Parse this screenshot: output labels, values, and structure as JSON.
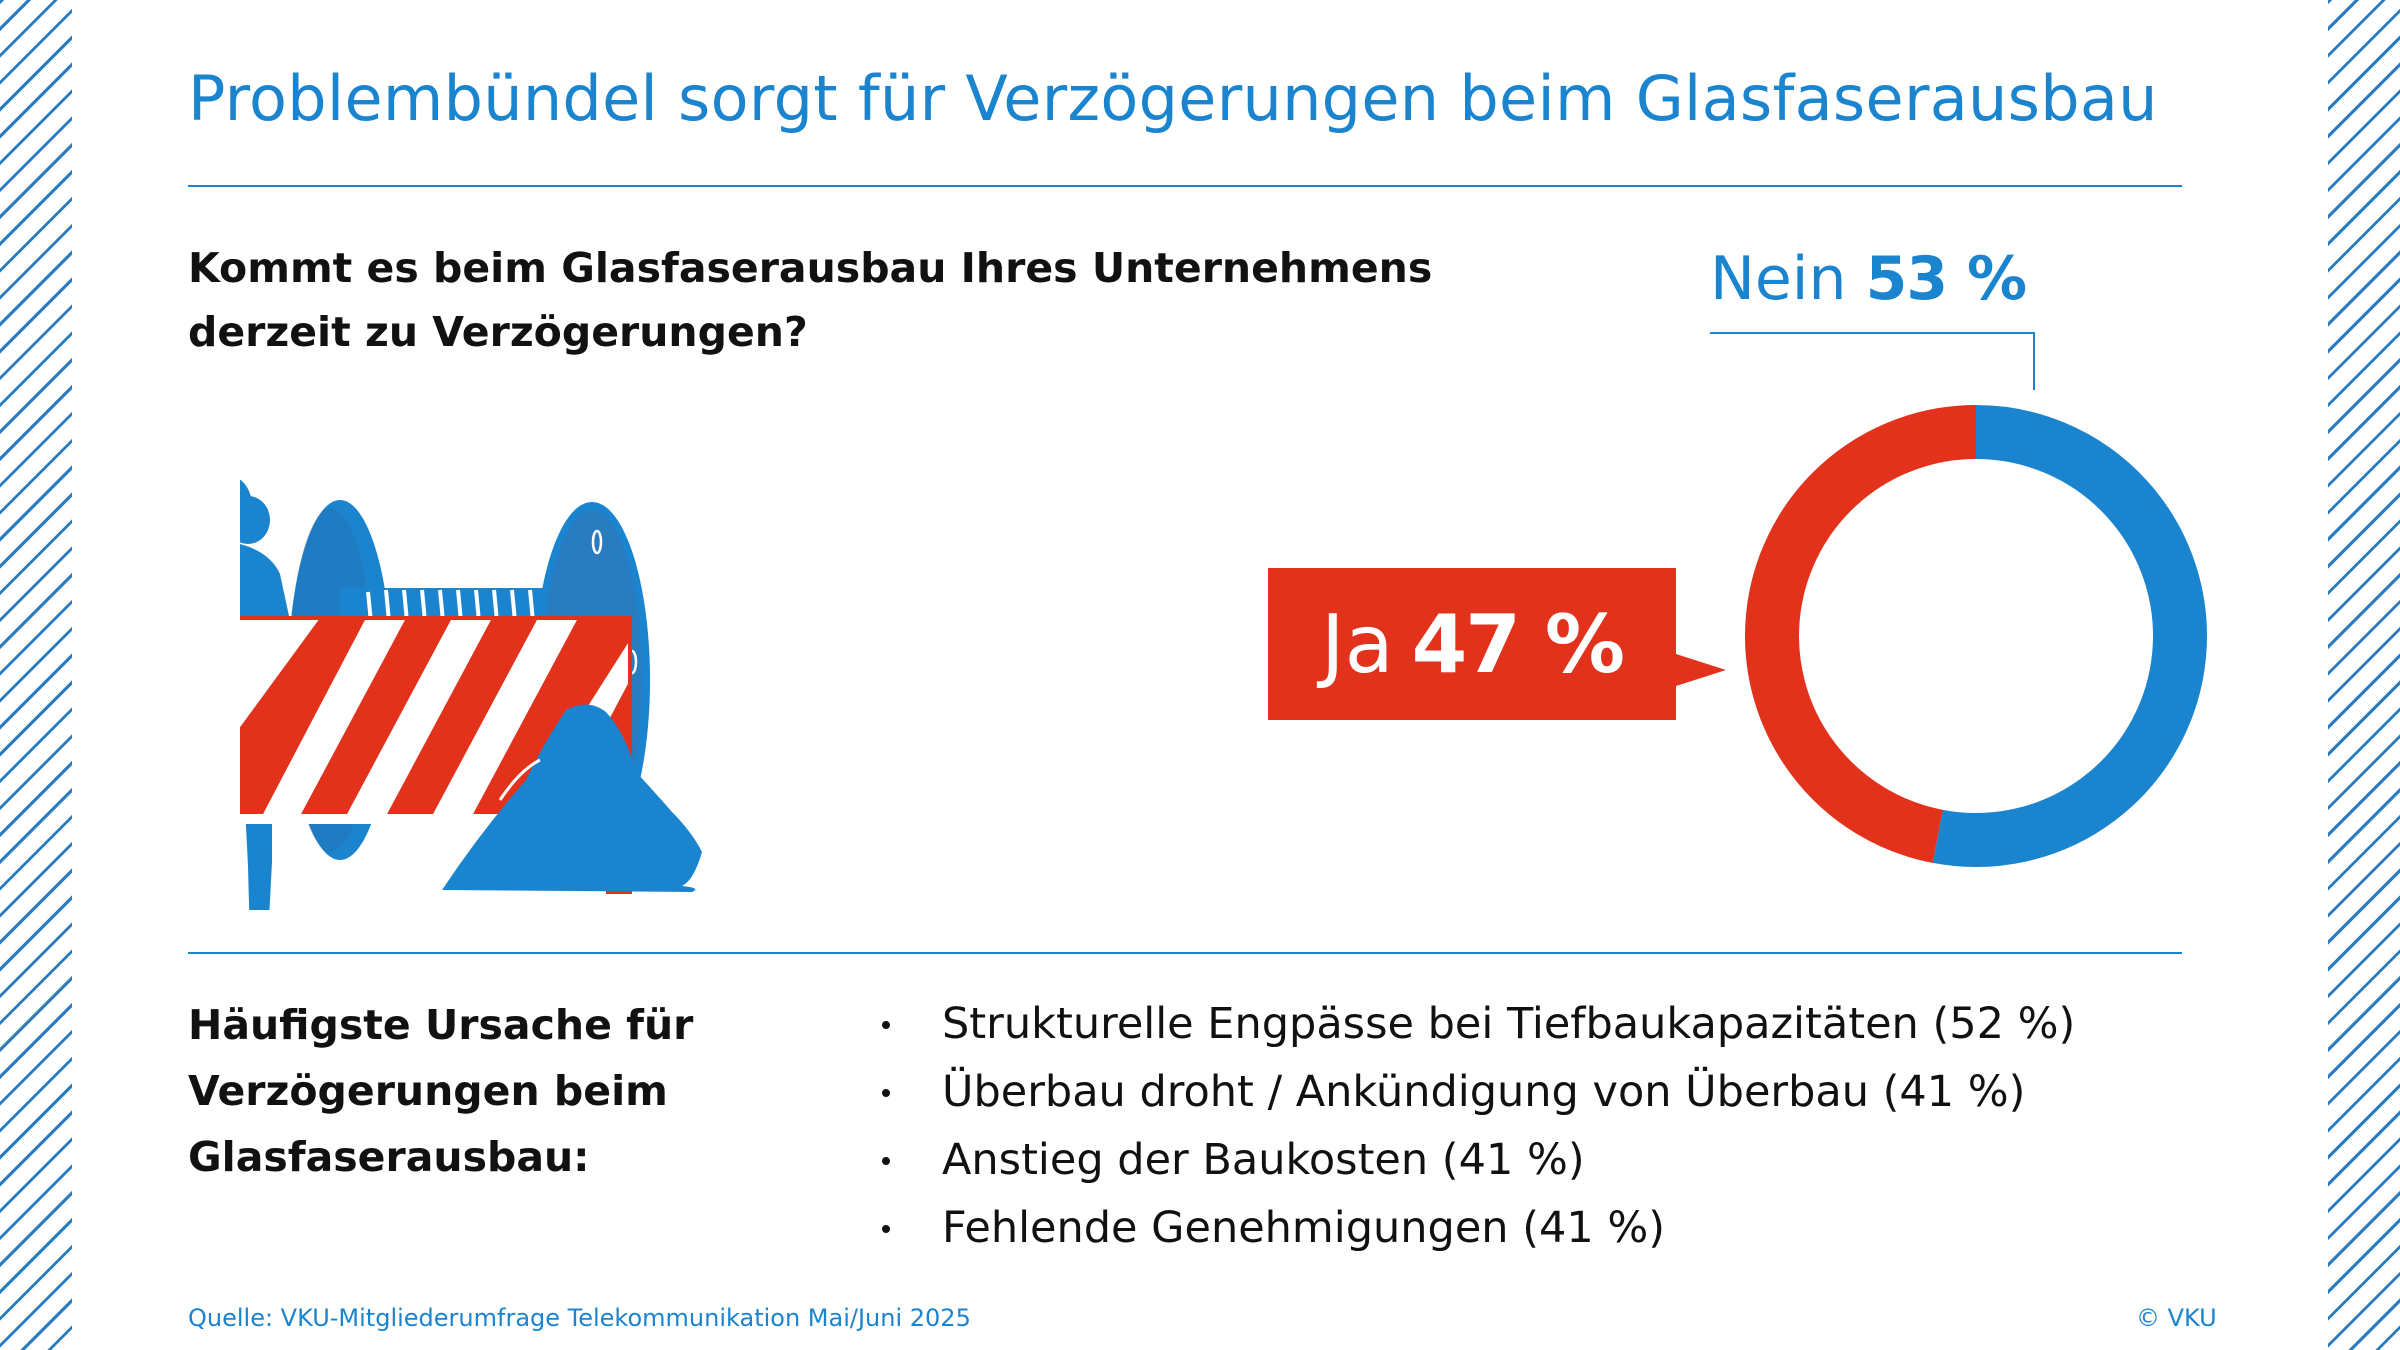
{
  "title": "Problembündel sorgt für Verzögerungen beim Glasfaserausbau",
  "question": {
    "line1": "Kommt es beim Glasfaserausbau Ihres Unternehmens",
    "line2": "derzeit zu Verzögerungen?"
  },
  "colors": {
    "blue": "#1b84cf",
    "red": "#e3321c",
    "stripe": "#2b7cc0"
  },
  "illustration": {
    "icons": [
      "construction-worker-icon",
      "road-barrier-icon",
      "cable-drum-icon",
      "soil-heap-icon"
    ]
  },
  "chart_data": {
    "type": "pie",
    "style": "donut",
    "categories": [
      "Ja",
      "Nein"
    ],
    "values": [
      47,
      53
    ],
    "value_labels": [
      "47 %",
      "53 %"
    ],
    "colors": [
      "#e3321c",
      "#1b84cf"
    ],
    "title": ""
  },
  "causes": {
    "heading": [
      "Häufigste Ursache für",
      "Verzögerungen beim",
      "Glasfaserausbau:"
    ],
    "items": [
      "Strukturelle Engpässe bei Tiefbaukapazitäten (52 %)",
      "Überbau droht / Ankündigung von Überbau (41 %)",
      "Anstieg der Baukosten (41 %)",
      "Fehlende Genehmigungen (41 %)"
    ]
  },
  "footer": {
    "source": "Quelle: VKU-Mitgliederumfrage Telekommunikation Mai/Juni 2025",
    "copyright": "© VKU"
  }
}
